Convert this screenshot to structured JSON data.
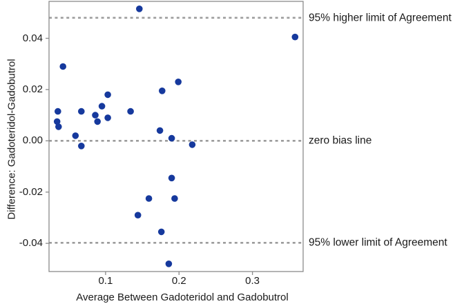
{
  "chart_data": {
    "type": "scatter",
    "title": "",
    "xlabel": "Average Between Gadoteridol and Gadobutrol",
    "ylabel": "Difference: Gadoteridol-Gadobutrol",
    "xlim": [
      0.023,
      0.369
    ],
    "ylim": [
      -0.051,
      0.0544
    ],
    "grid": false,
    "legend": "none",
    "x_ticks": [
      {
        "value": 0.1,
        "label": "0.1"
      },
      {
        "value": 0.2,
        "label": "0.2"
      },
      {
        "value": 0.3,
        "label": "0.3"
      }
    ],
    "y_ticks": [
      {
        "value": 0.04,
        "label": "0.04"
      },
      {
        "value": 0.02,
        "label": "0.02"
      },
      {
        "value": 0.0,
        "label": "0.00"
      },
      {
        "value": -0.02,
        "label": "-0.02"
      },
      {
        "value": -0.04,
        "label": "-0.04"
      }
    ],
    "reference_lines": [
      {
        "value": 0.048,
        "label": "95% higher limit of Agreement",
        "style": "dashed"
      },
      {
        "value": 0.0,
        "label": "zero bias line",
        "style": "dashed"
      },
      {
        "value": -0.0398,
        "label": "95% lower limit of Agreement",
        "style": "dashed"
      }
    ],
    "points": [
      {
        "x": 0.146,
        "y": 0.0515
      },
      {
        "x": 0.358,
        "y": 0.0405
      },
      {
        "x": 0.042,
        "y": 0.029
      },
      {
        "x": 0.199,
        "y": 0.023
      },
      {
        "x": 0.177,
        "y": 0.0195
      },
      {
        "x": 0.103,
        "y": 0.018
      },
      {
        "x": 0.095,
        "y": 0.0135
      },
      {
        "x": 0.035,
        "y": 0.0115
      },
      {
        "x": 0.067,
        "y": 0.0115
      },
      {
        "x": 0.134,
        "y": 0.0115
      },
      {
        "x": 0.086,
        "y": 0.01
      },
      {
        "x": 0.103,
        "y": 0.009
      },
      {
        "x": 0.034,
        "y": 0.0075
      },
      {
        "x": 0.089,
        "y": 0.0075
      },
      {
        "x": 0.036,
        "y": 0.0055
      },
      {
        "x": 0.174,
        "y": 0.004
      },
      {
        "x": 0.059,
        "y": 0.002
      },
      {
        "x": 0.19,
        "y": 0.001
      },
      {
        "x": 0.218,
        "y": -0.0015
      },
      {
        "x": 0.067,
        "y": -0.002
      },
      {
        "x": 0.19,
        "y": -0.0145
      },
      {
        "x": 0.159,
        "y": -0.0225
      },
      {
        "x": 0.194,
        "y": -0.0225
      },
      {
        "x": 0.144,
        "y": -0.029
      },
      {
        "x": 0.176,
        "y": -0.0355
      },
      {
        "x": 0.186,
        "y": -0.048
      }
    ],
    "colors": {
      "marker": "#16399d",
      "reference_line": "#9c9c9c",
      "frame": "#8a8a8a",
      "tick": "#8a8a8a",
      "text": "#1a1a1a"
    },
    "marker_radius": 4.8
  }
}
